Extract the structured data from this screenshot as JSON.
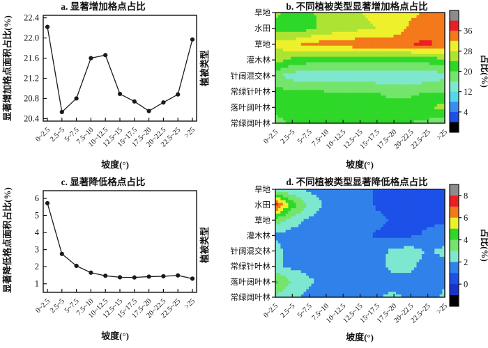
{
  "figure": {
    "background": "#ffffff",
    "axis_color": "#111111"
  },
  "slope_categories": [
    "0~2.5",
    "2.5~5",
    "5~7.5",
    "7.5~10",
    "10~12.5",
    "12.5~15",
    "15~17.5",
    "17.5~20",
    "20~22.5",
    "22.5~25",
    ">25"
  ],
  "vegetation_types": [
    "旱地",
    "水田",
    "草地",
    "灌木林",
    "针阔混交林",
    "常绿针叶林",
    "落叶阔叶林",
    "常绿阔叶林"
  ],
  "chart_data": [
    {
      "id": "a",
      "type": "line",
      "title": "a. 显著增加格点占比",
      "xlabel": "坡度(°)",
      "ylabel": "显著增加格点面积占比(%)",
      "categories": [
        "0~2.5",
        "2.5~5",
        "5~7.5",
        "7.5~10",
        "10~12.5",
        "12.5~15",
        "15~17.5",
        "17.5~20",
        "20~22.5",
        "22.5~25",
        ">25"
      ],
      "values": [
        22.22,
        20.53,
        20.8,
        21.6,
        21.66,
        20.89,
        20.74,
        20.55,
        20.72,
        20.88,
        21.97
      ],
      "yticks": [
        20.4,
        20.8,
        21.2,
        21.6,
        22.0,
        22.4
      ],
      "ytick_format": "1dp",
      "ylim": [
        20.35,
        22.45
      ],
      "line_color": "#1a1a1a",
      "marker": "filled-circle"
    },
    {
      "id": "b",
      "type": "heatmap",
      "title": "b. 不同植被类型显著增加格点占比",
      "xlabel": "坡度(°)",
      "ylabel": "植被类型",
      "colorbar_label": "占比(%)",
      "categories": [
        "0~2.5",
        "2.5~5",
        "5~7.5",
        "7.5~10",
        "10~12.5",
        "12.5~15",
        "15~17.5",
        "17.5~20",
        "20~22.5",
        "22.5~25",
        ">25"
      ],
      "rows": [
        "旱地",
        "水田",
        "草地",
        "灌木林",
        "针阔混交林",
        "常绿针叶林",
        "落叶阔叶林",
        "常绿阔叶林"
      ],
      "grid": [
        [
          25,
          22,
          23,
          26,
          27,
          28,
          29,
          30,
          31,
          33,
          34
        ],
        [
          23,
          21,
          23,
          25,
          26,
          27,
          28,
          29,
          33,
          34,
          35
        ],
        [
          29,
          31,
          33,
          34,
          34,
          35,
          35,
          35,
          36,
          37,
          34
        ],
        [
          26,
          23,
          22,
          22,
          21,
          21,
          21,
          21,
          21,
          22,
          23
        ],
        [
          17,
          14,
          13,
          13,
          13,
          13,
          12.5,
          12.5,
          12.5,
          13,
          15
        ],
        [
          21,
          21,
          21,
          20,
          20,
          20,
          20,
          19,
          19,
          20,
          20
        ],
        [
          22,
          23,
          22,
          22,
          21,
          21,
          21,
          21,
          22,
          23,
          26
        ],
        [
          18,
          21,
          22,
          22,
          22,
          22,
          22,
          21,
          20,
          19,
          17
        ]
      ],
      "levels": [
        0,
        4,
        8,
        12,
        16,
        20,
        24,
        28,
        32,
        36,
        40
      ],
      "colors": [
        "#000000",
        "#1C50E8",
        "#3C8CEE",
        "#54D8E8",
        "#7FE7CE",
        "#74E46B",
        "#2FD828",
        "#ADE433",
        "#EEF02B",
        "#F3791B",
        "#EA1E24",
        "#8C8C8C"
      ],
      "colorbar_ticks": [
        36,
        28,
        20,
        12,
        4
      ]
    },
    {
      "id": "c",
      "type": "line",
      "title": "c. 显著降低格点占比",
      "xlabel": "坡度(°)",
      "ylabel": "显著降低格点面积占比(%)",
      "categories": [
        "0~2.5",
        "2.5~5",
        "5~7.5",
        "7.5~10",
        "10~12.5",
        "12.5~15",
        "15~17.5",
        "17.5~20",
        "20~22.5",
        "22.5~25",
        ">25"
      ],
      "values": [
        5.72,
        2.75,
        2.05,
        1.65,
        1.47,
        1.38,
        1.37,
        1.42,
        1.44,
        1.49,
        1.3
      ],
      "yticks": [
        1,
        2,
        3,
        4,
        5,
        6
      ],
      "ytick_format": "int",
      "ylim": [
        0.5,
        6.45
      ],
      "line_color": "#1a1a1a",
      "marker": "filled-circle"
    },
    {
      "id": "d",
      "type": "heatmap",
      "title": "d. 不同植被类型显著降低格点占比",
      "xlabel": "坡度(°)",
      "ylabel": "植被类型",
      "colorbar_label": "占比(%)",
      "categories": [
        "0~2.5",
        "2.5~5",
        "5~7.5",
        "7.5~10",
        "10~12.5",
        "12.5~15",
        "15~17.5",
        "17.5~20",
        "20~22.5",
        "22.5~25",
        ">25"
      ],
      "rows": [
        "旱地",
        "水田",
        "草地",
        "灌木林",
        "针阔混交林",
        "常绿针叶林",
        "落叶阔叶林",
        "常绿阔叶林"
      ],
      "grid": [
        [
          2.6,
          2.2,
          1.8,
          1.6,
          1.4,
          1.3,
          0.9,
          0.8,
          0.8,
          0.8,
          0.8
        ],
        [
          7.4,
          4.5,
          2.8,
          1.8,
          1.5,
          1.3,
          0.9,
          0.8,
          0.8,
          0.8,
          0.8
        ],
        [
          3.6,
          2.6,
          1.8,
          1.5,
          1.4,
          1.3,
          1.2,
          0.9,
          0.9,
          0.9,
          0.9
        ],
        [
          1.8,
          1.4,
          1.4,
          1.4,
          1.3,
          1.2,
          0.9,
          0.8,
          0.9,
          1.1,
          1.3
        ],
        [
          2.4,
          1.6,
          1.5,
          1.4,
          1.4,
          1.4,
          1.5,
          2.3,
          2.4,
          1.9,
          2.3
        ],
        [
          2.2,
          1.8,
          1.6,
          1.5,
          1.5,
          1.5,
          1.6,
          2.4,
          2.2,
          1.6,
          1.6
        ],
        [
          4.3,
          2.9,
          2.2,
          1.6,
          1.5,
          1.5,
          1.5,
          1.5,
          1.6,
          1.6,
          1.9
        ],
        [
          2.6,
          2.3,
          1.6,
          1.5,
          1.5,
          1.6,
          1.9,
          2.3,
          1.6,
          1.5,
          2.2
        ]
      ],
      "levels": [
        -1,
        0,
        1,
        2,
        3,
        4,
        5,
        6,
        7,
        8
      ],
      "colors": [
        "#000000",
        "#1733C9",
        "#1C50E8",
        "#3181EA",
        "#7DE8CF",
        "#74E46B",
        "#2FD828",
        "#EEF02B",
        "#F3791B",
        "#EA1E24",
        "#8C8C8C"
      ],
      "colorbar_ticks": [
        8,
        6,
        4,
        2,
        0
      ]
    }
  ]
}
